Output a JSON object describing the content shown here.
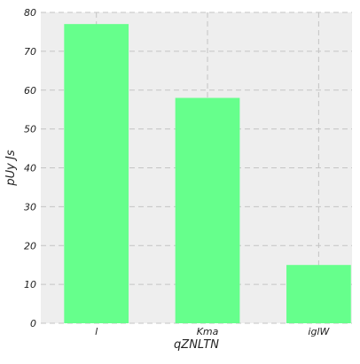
{
  "chart_data": {
    "type": "bar",
    "title": "",
    "xlabel": "qZNLTN",
    "ylabel": "pUy Js",
    "categories": [
      "l",
      "Kma",
      "iglW"
    ],
    "values": [
      77,
      58,
      15
    ],
    "ylim": [
      0,
      80
    ],
    "yticks": [
      0,
      10,
      20,
      30,
      40,
      50,
      60,
      70,
      80
    ],
    "grid": true,
    "colors": {
      "bar": "#66ff8c",
      "plot_background": "#eeeeee",
      "grid": "#c4c4c4"
    }
  }
}
